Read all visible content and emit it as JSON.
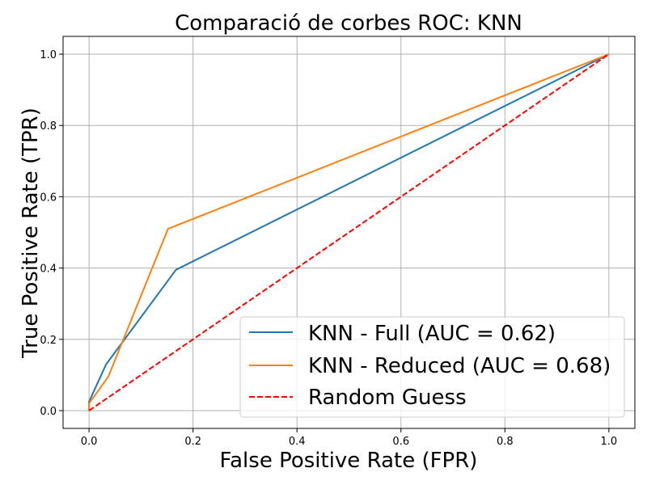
{
  "chart_data": {
    "type": "line",
    "title": "Comparació de corbes ROC: KNN",
    "xlabel": "False Positive Rate (FPR)",
    "ylabel": "True Positive Rate (TPR)",
    "xlim": [
      -0.05,
      1.05
    ],
    "ylim": [
      -0.05,
      1.05
    ],
    "xticks": [
      "0.0",
      "0.2",
      "0.4",
      "0.6",
      "0.8",
      "1.0"
    ],
    "yticks": [
      "0.0",
      "0.2",
      "0.4",
      "0.6",
      "0.8",
      "1.0"
    ],
    "grid": true,
    "legend_position": "lower-right",
    "series": [
      {
        "name": "KNN - Full (AUC = 0.62)",
        "color": "#1f77b4",
        "style": "solid",
        "x": [
          0.0,
          0.0,
          0.033,
          0.167,
          1.0
        ],
        "y": [
          0.0,
          0.025,
          0.13,
          0.395,
          1.0
        ]
      },
      {
        "name": "KNN - Reduced (AUC = 0.68)",
        "color": "#ff7f0e",
        "style": "solid",
        "x": [
          0.0,
          0.0,
          0.037,
          0.152,
          1.0
        ],
        "y": [
          0.0,
          0.02,
          0.095,
          0.51,
          1.0
        ]
      },
      {
        "name": "Random Guess",
        "color": "#ff0000",
        "style": "dashed",
        "x": [
          0.0,
          1.0
        ],
        "y": [
          0.0,
          1.0
        ]
      }
    ]
  }
}
